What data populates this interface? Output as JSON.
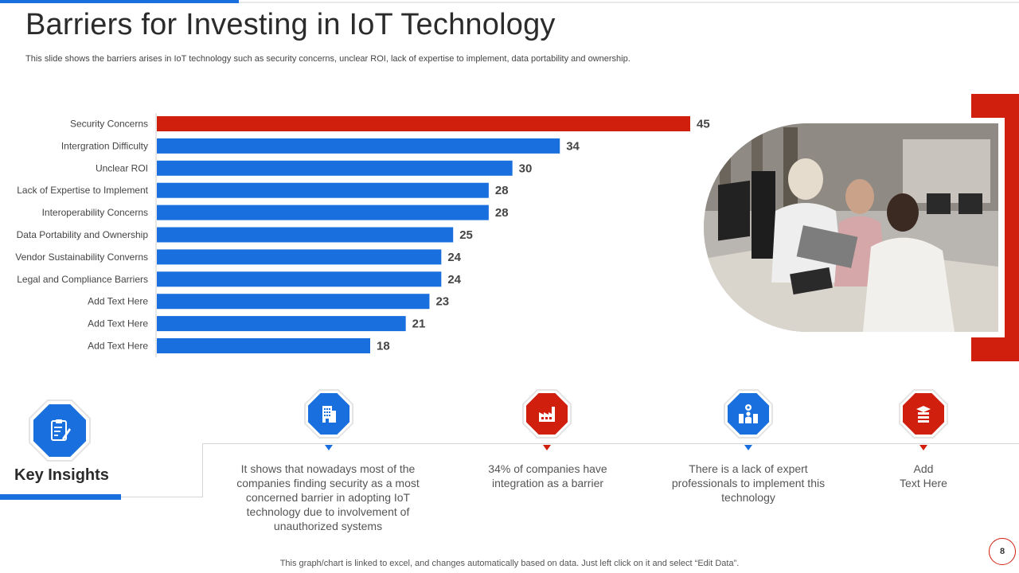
{
  "slide": {
    "title": "Barriers for Investing in IoT Technology",
    "subtitle": "This slide shows the barriers arises in IoT technology such as security concerns, unclear ROI, lack of expertise to implement, data portability and ownership.",
    "footer": "This graph/chart is linked to excel,  and changes automatically based on data. Just left click on it and select “Edit Data”.",
    "page_number": "8"
  },
  "colors": {
    "blue": "#1a6fde",
    "red": "#d11f0e",
    "grey_line": "#d6d6d6"
  },
  "chart_data": {
    "type": "bar",
    "orientation": "horizontal",
    "categories": [
      "Security Concerns",
      "Intergration Difficulty",
      "Unclear ROI",
      "Lack of Expertise to Implement",
      "Interoperability Concerns",
      "Data Portability and Ownership",
      "Vendor Sustainability Converns",
      "Legal and Compliance Barriers",
      "Add Text Here",
      "Add Text Here",
      "Add Text Here"
    ],
    "values": [
      45,
      34,
      30,
      28,
      28,
      25,
      24,
      24,
      23,
      21,
      18
    ],
    "highlight_index": 0,
    "highlight_color": "#d11f0e",
    "bar_color": "#1a6fde",
    "xlim": [
      0,
      45
    ],
    "title": "",
    "xlabel": "",
    "ylabel": "",
    "data_labels": true,
    "grid": false
  },
  "insights": {
    "heading": "Key Insights",
    "items": [
      {
        "icon": "office-building-icon",
        "color": "blue",
        "text": "It shows that nowadays most of the companies finding security as a most concerned barrier in adopting IoT technology due to involvement of unauthorized systems"
      },
      {
        "icon": "factory-icon",
        "color": "red",
        "text": "34% of companies have integration as a barrier"
      },
      {
        "icon": "professionals-icon",
        "color": "blue",
        "text": "There is a lack of expert professionals to implement this technology"
      },
      {
        "icon": "stacked-books-icon",
        "color": "red",
        "text": "Add\nText Here"
      }
    ]
  }
}
